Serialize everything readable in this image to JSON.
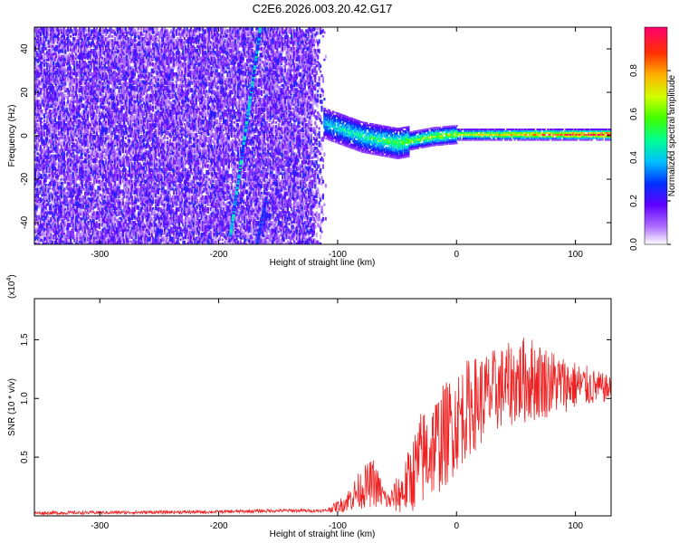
{
  "chart_data": [
    {
      "type": "heatmap",
      "title": "C2E6.2026.003.20.42.G17",
      "xlabel": "Height of straight line (km)",
      "ylabel": "Frequency (Hz)",
      "xlim": [
        -355,
        130
      ],
      "ylim": [
        -50,
        50
      ],
      "xticks": [
        -300,
        -200,
        -100,
        0,
        100
      ],
      "yticks": [
        -40,
        -20,
        0,
        20,
        40
      ],
      "colorbar": {
        "label": "Normalized spectral amplitude",
        "range": [
          0,
          1
        ],
        "ticks": [
          "0.0",
          "0.2",
          "0.4",
          "0.6",
          "0.8"
        ]
      },
      "features": [
        {
          "name": "noise-region",
          "x_range": [
            -355,
            -110
          ],
          "freq_range": [
            -50,
            50
          ],
          "amplitude": 0.15
        },
        {
          "name": "diagonal-trace-1",
          "from": [
            -190,
            -45
          ],
          "to": [
            -165,
            50
          ],
          "amplitude": 0.35
        },
        {
          "name": "diagonal-trace-2",
          "from": [
            -168,
            -50
          ],
          "to": [
            -160,
            -28
          ],
          "amplitude": 0.25
        },
        {
          "name": "signal-band-center",
          "points": [
            [
              -110,
              6
            ],
            [
              -80,
              0
            ],
            [
              -50,
              -3
            ],
            [
              -20,
              0
            ],
            [
              0,
              1
            ],
            [
              50,
              1
            ],
            [
              130,
              1
            ]
          ],
          "amplitude_range": [
            0.3,
            0.9
          ]
        }
      ]
    },
    {
      "type": "line",
      "xlabel": "Height of straight line (km)",
      "ylabel": "SNR (10 * v/v)",
      "yscale_label": "(x10",
      "yscale_exp": "4",
      "xlim": [
        -355,
        130
      ],
      "ylim": [
        0,
        1.85
      ],
      "xticks": [
        -300,
        -200,
        -100,
        0,
        100
      ],
      "yticks": [
        0.5,
        1.0,
        1.5
      ],
      "ytick_labels": [
        "0.5",
        "1.0",
        "1.5"
      ],
      "color": "#ee2222",
      "envelope": [
        {
          "x": -355,
          "base": 0.02,
          "amp": 0.02
        },
        {
          "x": -200,
          "base": 0.03,
          "amp": 0.02
        },
        {
          "x": -150,
          "base": 0.04,
          "amp": 0.02
        },
        {
          "x": -110,
          "base": 0.04,
          "amp": 0.02
        },
        {
          "x": -95,
          "base": 0.08,
          "amp": 0.1
        },
        {
          "x": -80,
          "base": 0.18,
          "amp": 0.25
        },
        {
          "x": -70,
          "base": 0.22,
          "amp": 0.3
        },
        {
          "x": -58,
          "base": 0.1,
          "amp": 0.1
        },
        {
          "x": -45,
          "base": 0.15,
          "amp": 0.3
        },
        {
          "x": -30,
          "base": 0.35,
          "amp": 0.6
        },
        {
          "x": -10,
          "base": 0.55,
          "amp": 0.65
        },
        {
          "x": 10,
          "base": 0.8,
          "amp": 0.6
        },
        {
          "x": 40,
          "base": 1.0,
          "amp": 0.5
        },
        {
          "x": 60,
          "base": 1.05,
          "amp": 0.55
        },
        {
          "x": 90,
          "base": 1.05,
          "amp": 0.35
        },
        {
          "x": 130,
          "base": 1.05,
          "amp": 0.15
        }
      ]
    }
  ]
}
